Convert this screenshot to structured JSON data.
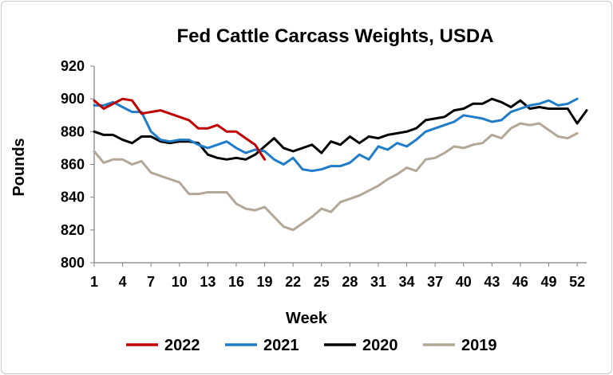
{
  "chart_data": {
    "type": "line",
    "title": "Fed Cattle Carcass Weights, USDA",
    "xlabel": "Week",
    "ylabel": "Pounds",
    "ylim": [
      800,
      920
    ],
    "xlim": [
      1,
      53
    ],
    "y_ticks": [
      "800",
      "820",
      "840",
      "860",
      "880",
      "900",
      "920"
    ],
    "x_ticks": [
      "1",
      "4",
      "7",
      "10",
      "13",
      "16",
      "19",
      "22",
      "25",
      "28",
      "31",
      "34",
      "37",
      "40",
      "43",
      "46",
      "49",
      "52"
    ],
    "legend_position": "bottom",
    "grid": false,
    "series": [
      {
        "name": "2022",
        "color": "#c00000",
        "values": [
          899,
          894,
          897,
          900,
          899,
          891,
          892,
          893,
          891,
          889,
          887,
          882,
          882,
          884,
          880,
          880,
          876,
          872,
          863
        ]
      },
      {
        "name": "2021",
        "color": "#1f7cc8",
        "values": [
          896,
          896,
          898,
          895,
          892,
          892,
          880,
          875,
          874,
          875,
          875,
          872,
          870,
          872,
          874,
          870,
          867,
          869,
          868,
          863,
          860,
          864,
          857,
          856,
          857,
          859,
          859,
          861,
          866,
          863,
          871,
          869,
          873,
          871,
          875,
          880,
          882,
          884,
          886,
          890,
          889,
          888,
          886,
          887,
          892,
          894,
          896,
          897,
          899,
          896,
          897,
          900
        ]
      },
      {
        "name": "2020",
        "color": "#000000",
        "values": [
          880,
          878,
          878,
          875,
          873,
          877,
          877,
          874,
          873,
          874,
          874,
          873,
          866,
          864,
          863,
          864,
          863,
          866,
          871,
          876,
          870,
          868,
          870,
          872,
          867,
          874,
          872,
          877,
          873,
          877,
          876,
          878,
          879,
          880,
          882,
          887,
          888,
          889,
          893,
          894,
          897,
          897,
          900,
          898,
          895,
          899,
          894,
          895,
          894,
          894,
          894,
          885,
          893
        ]
      },
      {
        "name": "2019",
        "color": "#b3a898",
        "values": [
          868,
          861,
          863,
          863,
          860,
          862,
          855,
          853,
          851,
          849,
          842,
          842,
          843,
          843,
          843,
          836,
          833,
          832,
          834,
          828,
          822,
          820,
          824,
          828,
          833,
          831,
          837,
          839,
          841,
          844,
          847,
          851,
          854,
          858,
          856,
          863,
          864,
          867,
          871,
          870,
          872,
          873,
          878,
          876,
          882,
          885,
          884,
          885,
          881,
          877,
          876,
          879
        ]
      }
    ]
  }
}
